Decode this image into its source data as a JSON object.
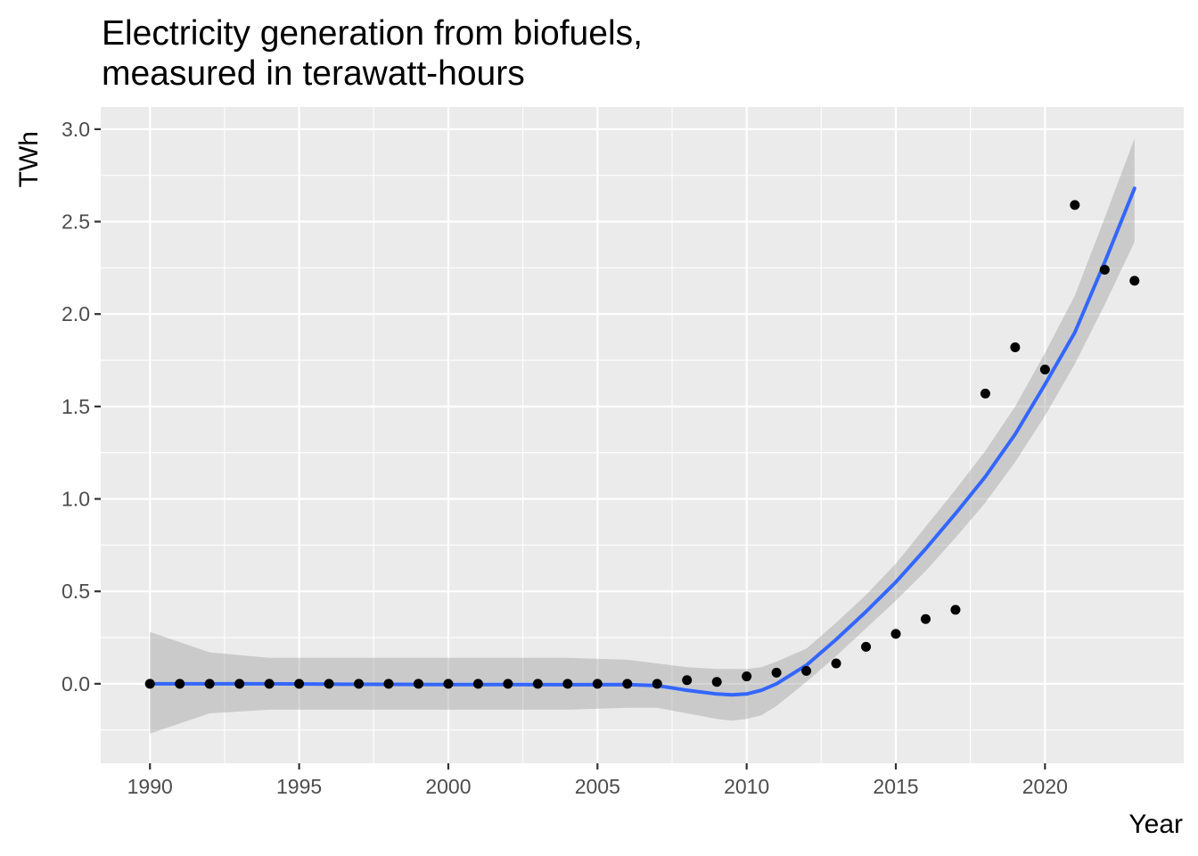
{
  "chart_data": {
    "type": "scatter",
    "title_lines": [
      "Electricity generation from biofuels,",
      "measured in terawatt-hours"
    ],
    "xlabel": "Year",
    "ylabel": "TWh",
    "xlim": [
      1988.35,
      2024.65
    ],
    "ylim": [
      -0.43,
      3.12
    ],
    "x_ticks": [
      1990,
      1995,
      2000,
      2005,
      2010,
      2015,
      2020
    ],
    "x_tick_labels": [
      "1990",
      "1995",
      "2000",
      "2005",
      "2010",
      "2015",
      "2020"
    ],
    "y_ticks": [
      0.0,
      0.5,
      1.0,
      1.5,
      2.0,
      2.5,
      3.0
    ],
    "y_tick_labels": [
      "0.0",
      "0.5",
      "1.0",
      "1.5",
      "2.0",
      "2.5",
      "3.0"
    ],
    "grid": true,
    "colors": {
      "panel": "#ebebeb",
      "grid": "#ffffff",
      "points": "#000000",
      "smooth_line": "#3366ff",
      "confidence_band": "#999999"
    },
    "series": [
      {
        "kind": "points",
        "x": [
          1990,
          1991,
          1992,
          1993,
          1994,
          1995,
          1996,
          1997,
          1998,
          1999,
          2000,
          2001,
          2002,
          2003,
          2004,
          2005,
          2006,
          2007,
          2008,
          2009,
          2010,
          2011,
          2012,
          2013,
          2014,
          2015,
          2016,
          2017,
          2018,
          2019,
          2020,
          2021,
          2022,
          2023
        ],
        "y": [
          0,
          0,
          0,
          0,
          0,
          0,
          0,
          0,
          0,
          0,
          0,
          0,
          0,
          0,
          0,
          0,
          0,
          0,
          0.02,
          0.01,
          0.04,
          0.06,
          0.07,
          0.11,
          0.2,
          0.27,
          0.35,
          0.4,
          1.57,
          1.82,
          1.7,
          2.59,
          2.24,
          2.18
        ]
      },
      {
        "kind": "smooth",
        "x": [
          1990,
          1992,
          1994,
          1996,
          1998,
          2000,
          2002,
          2004,
          2006,
          2007,
          2008,
          2009,
          2009.5,
          2010,
          2010.5,
          2011,
          2012,
          2013,
          2014,
          2015,
          2016,
          2017,
          2018,
          2019,
          2020,
          2021,
          2022,
          2023
        ],
        "y": [
          0.0,
          0.0,
          0.0,
          -0.002,
          -0.003,
          -0.004,
          -0.004,
          -0.005,
          -0.004,
          -0.01,
          -0.035,
          -0.055,
          -0.06,
          -0.055,
          -0.035,
          0.0,
          0.1,
          0.24,
          0.39,
          0.55,
          0.73,
          0.92,
          1.12,
          1.35,
          1.62,
          1.9,
          2.28,
          2.68
        ],
        "band_lower": [
          -0.27,
          -0.16,
          -0.14,
          -0.14,
          -0.14,
          -0.14,
          -0.14,
          -0.14,
          -0.13,
          -0.13,
          -0.16,
          -0.19,
          -0.2,
          -0.19,
          -0.17,
          -0.12,
          0.01,
          0.15,
          0.3,
          0.45,
          0.61,
          0.79,
          0.98,
          1.2,
          1.45,
          1.73,
          2.05,
          2.39
        ],
        "band_upper": [
          0.28,
          0.17,
          0.14,
          0.14,
          0.14,
          0.14,
          0.14,
          0.14,
          0.13,
          0.11,
          0.09,
          0.08,
          0.08,
          0.08,
          0.09,
          0.12,
          0.19,
          0.33,
          0.48,
          0.65,
          0.85,
          1.05,
          1.26,
          1.5,
          1.79,
          2.1,
          2.52,
          2.95
        ]
      }
    ]
  }
}
